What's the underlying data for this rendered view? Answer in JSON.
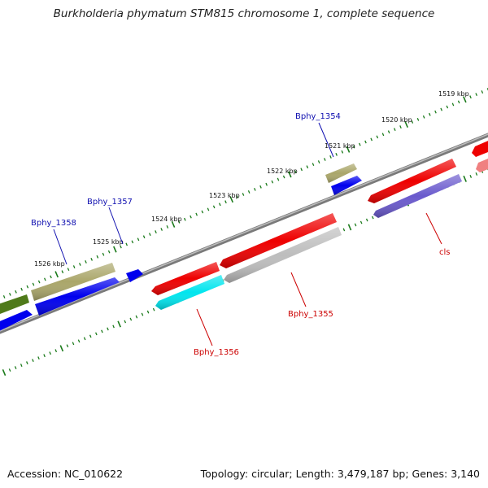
{
  "title": "Burkholderia phymatum STM815 chromosome 1, complete sequence",
  "footer": {
    "accession": "Accession: NC_010622",
    "topology": "Topology: circular; Length: 3,479,187 bp; Genes: 3,140"
  },
  "kbp_labels": [
    "1519 kbp",
    "1520 kbp",
    "1521 kbp",
    "1522 kbp",
    "1523 kbp",
    "1524 kbp",
    "1525 kbp",
    "1526 kbp"
  ],
  "genes": [
    {
      "label": "Bphy_1354",
      "strand": "forward",
      "color": "#0000ee"
    },
    {
      "label": "Bphy_1355",
      "strand": "reverse",
      "color": "#bbbbbb"
    },
    {
      "label": "Bphy_1356",
      "strand": "reverse",
      "color": "#00e5ee"
    },
    {
      "label": "Bphy_1357",
      "strand": "forward",
      "color": "#0000ee"
    },
    {
      "label": "Bphy_1358",
      "strand": "forward",
      "color": "#0000ee"
    },
    {
      "label": "cls",
      "strand": "reverse",
      "color": "#6a5acd"
    }
  ],
  "colors": {
    "backbone": "#808080",
    "ticks": "#1a7a1a",
    "forward_label": "#1010b0",
    "reverse_label": "#cc0000"
  }
}
